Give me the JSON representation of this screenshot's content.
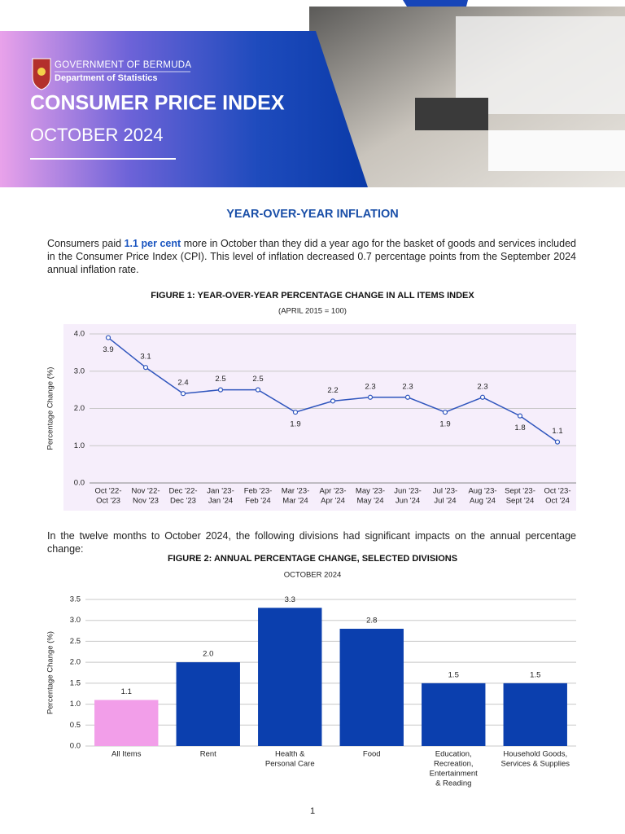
{
  "header": {
    "organization": "GOVERNMENT OF BERMUDA",
    "department": "Department of Statistics",
    "title": "CONSUMER PRICE INDEX",
    "period": "OCTOBER 2024"
  },
  "section_title": "YEAR-OVER-YEAR INFLATION",
  "paragraphs": [
    {
      "parts": [
        "Consumers paid ",
        "1.1 per cent",
        " more in October than they did a year ago for the basket of goods and services included in the Consumer Price Index (CPI). This level of inflation decreased 0.7 percentage points from the September 2024 annual inflation rate."
      ]
    },
    {
      "parts": [
        "In the twelve months to October 2024, the following divisions had significant impacts on the annual percentage change:"
      ]
    }
  ],
  "chart_data": [
    {
      "type": "line",
      "title": "FIGURE 1: YEAR-OVER-YEAR PERCENTAGE CHANGE IN ALL ITEMS INDEX",
      "subtitle": "(APRIL 2015 = 100)",
      "y_label": "Percentage Change (%)",
      "categories": [
        [
          "Oct '22-",
          "Oct '23"
        ],
        [
          "Nov '22-",
          "Nov '23"
        ],
        [
          "Dec '22-",
          "Dec '23"
        ],
        [
          "Jan '23-",
          "Jan '24"
        ],
        [
          "Feb '23-",
          "Feb '24"
        ],
        [
          "Mar '23-",
          "Mar '24"
        ],
        [
          "Apr '23-",
          "Apr '24"
        ],
        [
          "May '23-",
          "May '24"
        ],
        [
          "Jun '23-",
          "Jun '24"
        ],
        [
          "Jul '23-",
          "Jul '24"
        ],
        [
          "Aug '23-",
          "Aug '24"
        ],
        [
          "Sept '23-",
          "Sept '24"
        ],
        [
          "Oct '23-",
          "Oct '24"
        ]
      ],
      "values": [
        3.9,
        3.1,
        2.4,
        2.5,
        2.5,
        1.9,
        2.2,
        2.3,
        2.3,
        1.9,
        2.3,
        1.8,
        1.1
      ],
      "color": "#2f55bd",
      "background": "#f6eefb",
      "ylim": [
        0,
        4
      ],
      "yticks": [
        {
          "value": 0,
          "label": "0.0"
        },
        {
          "value": 1,
          "label": "1.0"
        },
        {
          "value": 2,
          "label": "2.0"
        },
        {
          "value": 3,
          "label": "3.0"
        },
        {
          "value": 4,
          "label": "4.0"
        }
      ],
      "grid": true
    },
    {
      "type": "bar",
      "title": "FIGURE 2: ANNUAL PERCENTAGE CHANGE, SELECTED DIVISIONS",
      "subtitle": "OCTOBER 2024",
      "y_label": "Percentage Change (%)",
      "categories": [
        [
          "All Items"
        ],
        [
          "Rent"
        ],
        [
          "Health &",
          "Personal Care"
        ],
        [
          "Food"
        ],
        [
          "Education,",
          "Recreation,",
          "Entertainment",
          "& Reading"
        ],
        [
          "Household Goods,",
          "Services & Supplies"
        ]
      ],
      "values": [
        1.1,
        2.0,
        3.3,
        2.8,
        1.5,
        1.5
      ],
      "value_labels": [
        "1.1",
        "2.0",
        "3.3",
        "2.8",
        "1.5",
        "1.5"
      ],
      "colors": [
        "#f29ee9",
        "#0b3fae",
        "#0b3fae",
        "#0b3fae",
        "#0b3fae",
        "#0b3fae"
      ],
      "ylim": [
        0,
        3.5
      ],
      "yticks": [
        {
          "value": 0,
          "label": "0.0"
        },
        {
          "value": 0.5,
          "label": "0.5"
        },
        {
          "value": 1,
          "label": "1.0"
        },
        {
          "value": 1.5,
          "label": "1.5"
        },
        {
          "value": 2,
          "label": "2.0"
        },
        {
          "value": 2.5,
          "label": "2.5"
        },
        {
          "value": 3,
          "label": "3.0"
        },
        {
          "value": 3.5,
          "label": "3.5"
        }
      ],
      "grid": true
    }
  ],
  "page_number": "1"
}
